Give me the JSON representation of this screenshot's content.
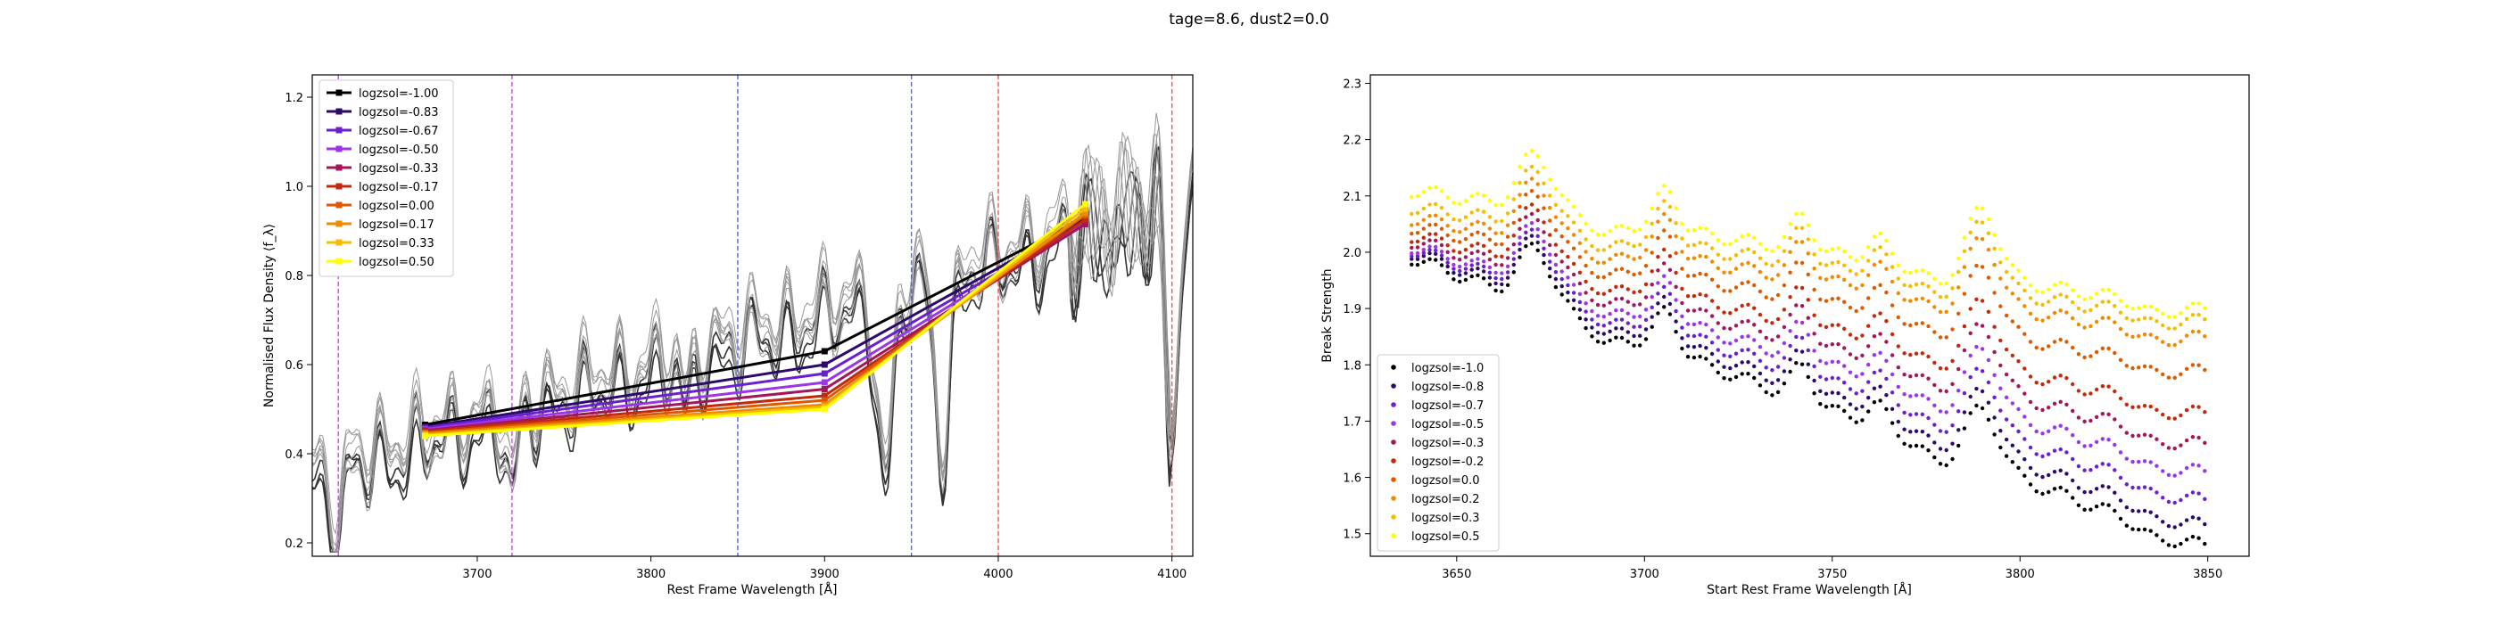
{
  "figure_title": "tage=8.6, dust2=0.0",
  "colors": {
    "series": [
      "#000000",
      "#2c0a6b",
      "#6a1fd0",
      "#9a36e8",
      "#a3165a",
      "#c22a0c",
      "#de5a00",
      "#f08a00",
      "#f5bd00",
      "#ffff00"
    ],
    "spectrum_dark": "#333333",
    "spectrum_light": "#999999",
    "vline_magenta": "#cc44ee",
    "vline_blue": "#5566ee",
    "vline_red": "#ee5555"
  },
  "chart_data": [
    {
      "type": "line",
      "xlabel": "Rest Frame Wavelength [Å]",
      "ylabel": "Normalised Flux Density ⟨f_λ⟩",
      "xlim": [
        3605,
        4112
      ],
      "ylim": [
        0.17,
        1.25
      ],
      "xticks": [
        "3700",
        "3800",
        "3900",
        "4000",
        "4100"
      ],
      "yticks": [
        "0.2",
        "0.4",
        "0.6",
        "0.8",
        "1.0",
        "1.2"
      ],
      "legend_position": "top-left",
      "vertical_lines": [
        {
          "x": 3620,
          "color": "magenta"
        },
        {
          "x": 3720,
          "color": "magenta"
        },
        {
          "x": 3850,
          "color": "blue"
        },
        {
          "x": 3950,
          "color": "blue"
        },
        {
          "x": 4000,
          "color": "red"
        },
        {
          "x": 4100,
          "color": "red"
        }
      ],
      "series": [
        {
          "name": "logzsol=-1.00",
          "points": [
            [
              3670,
              0.465
            ],
            [
              3900,
              0.63
            ],
            [
              4050,
              0.93
            ]
          ]
        },
        {
          "name": "logzsol=-0.83",
          "points": [
            [
              3670,
              0.46
            ],
            [
              3900,
              0.6
            ],
            [
              4050,
              0.925
            ]
          ]
        },
        {
          "name": "logzsol=-0.67",
          "points": [
            [
              3670,
              0.458
            ],
            [
              3900,
              0.58
            ],
            [
              4050,
              0.92
            ]
          ]
        },
        {
          "name": "logzsol=-0.50",
          "points": [
            [
              3670,
              0.455
            ],
            [
              3900,
              0.56
            ],
            [
              4050,
              0.918
            ]
          ]
        },
        {
          "name": "logzsol=-0.33",
          "points": [
            [
              3670,
              0.452
            ],
            [
              3900,
              0.545
            ],
            [
              4050,
              0.915
            ]
          ]
        },
        {
          "name": "logzsol=-0.17",
          "points": [
            [
              3670,
              0.45
            ],
            [
              3900,
              0.53
            ],
            [
              4050,
              0.925
            ]
          ]
        },
        {
          "name": "logzsol=0.00",
          "points": [
            [
              3670,
              0.447
            ],
            [
              3900,
              0.52
            ],
            [
              4050,
              0.935
            ]
          ]
        },
        {
          "name": "logzsol=0.17",
          "points": [
            [
              3670,
              0.445
            ],
            [
              3900,
              0.51
            ],
            [
              4050,
              0.94
            ]
          ]
        },
        {
          "name": "logzsol=0.33",
          "points": [
            [
              3670,
              0.442
            ],
            [
              3900,
              0.505
            ],
            [
              4050,
              0.95
            ]
          ]
        },
        {
          "name": "logzsol=0.50",
          "points": [
            [
              3670,
              0.44
            ],
            [
              3900,
              0.5
            ],
            [
              4050,
              0.96
            ]
          ]
        }
      ]
    },
    {
      "type": "scatter",
      "xlabel": "Start Rest Frame Wavelength [Å]",
      "ylabel": "Break Strength",
      "xlim": [
        3627,
        3861
      ],
      "ylim": [
        1.46,
        2.315
      ],
      "xticks": [
        "3650",
        "3700",
        "3750",
        "3800",
        "3850"
      ],
      "yticks": [
        "1.5",
        "1.6",
        "1.7",
        "1.8",
        "1.9",
        "2.0",
        "2.1",
        "2.2",
        "2.3"
      ],
      "legend_position": "bottom-left",
      "x_range": [
        3638,
        3850
      ],
      "series": [
        {
          "name": "logzsol=-1.0",
          "y_start": 1.99,
          "y_end": 1.475
        },
        {
          "name": "logzsol=-0.8",
          "y_start": 2.0,
          "y_end": 1.51
        },
        {
          "name": "logzsol=-0.7",
          "y_start": 2.005,
          "y_end": 1.555
        },
        {
          "name": "logzsol=-0.5",
          "y_start": 2.01,
          "y_end": 1.605
        },
        {
          "name": "logzsol=-0.3",
          "y_start": 2.02,
          "y_end": 1.655
        },
        {
          "name": "logzsol=-0.2",
          "y_start": 2.03,
          "y_end": 1.71
        },
        {
          "name": "logzsol=0.0",
          "y_start": 2.045,
          "y_end": 1.785
        },
        {
          "name": "logzsol=0.2",
          "y_start": 2.06,
          "y_end": 1.845
        },
        {
          "name": "logzsol=0.3",
          "y_start": 2.08,
          "y_end": 1.875
        },
        {
          "name": "logzsol=0.5",
          "y_start": 2.11,
          "y_end": 1.895
        }
      ]
    }
  ]
}
